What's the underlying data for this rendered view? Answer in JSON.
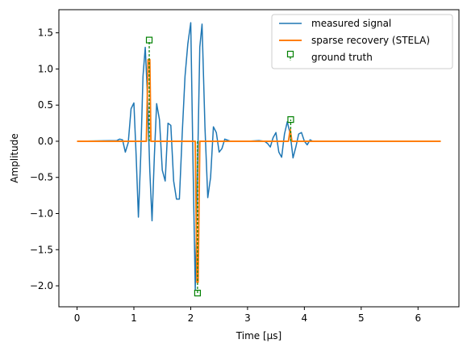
{
  "chart_data": {
    "type": "line",
    "xlabel": "Time [μs]",
    "ylabel": "Amplitude",
    "xlim": [
      -0.32,
      6.72
    ],
    "ylim": [
      -2.29,
      1.82
    ],
    "grid": false,
    "legend_placement": "upper right",
    "x_ticks": [
      0,
      1,
      2,
      3,
      4,
      5,
      6
    ],
    "x_tick_labels": [
      "0",
      "1",
      "2",
      "3",
      "4",
      "5",
      "6"
    ],
    "y_ticks": [
      -2.0,
      -1.5,
      -1.0,
      -0.5,
      0.0,
      0.5,
      1.0,
      1.5
    ],
    "y_tick_labels": [
      "−2.0",
      "−1.5",
      "−1.0",
      "−0.5",
      "0.0",
      "0.5",
      "1.0",
      "1.5"
    ],
    "series": [
      {
        "name": "measured signal",
        "color": "#1f77b4",
        "style": "line",
        "x": [
          0.0,
          0.7,
          0.75,
          0.8,
          0.85,
          0.9,
          0.95,
          1.0,
          1.04,
          1.08,
          1.12,
          1.16,
          1.2,
          1.24,
          1.28,
          1.32,
          1.36,
          1.4,
          1.45,
          1.5,
          1.55,
          1.6,
          1.65,
          1.7,
          1.75,
          1.8,
          1.85,
          1.9,
          1.95,
          2.0,
          2.04,
          2.08,
          2.12,
          2.16,
          2.2,
          2.25,
          2.3,
          2.35,
          2.4,
          2.45,
          2.5,
          2.55,
          2.6,
          2.7,
          3.0,
          3.2,
          3.3,
          3.35,
          3.4,
          3.45,
          3.5,
          3.55,
          3.6,
          3.65,
          3.7,
          3.75,
          3.8,
          3.85,
          3.9,
          3.95,
          4.0,
          4.05,
          4.1,
          4.15,
          4.2,
          6.4
        ],
        "y": [
          0.0,
          0.01,
          0.03,
          0.02,
          -0.15,
          -0.02,
          0.45,
          0.53,
          -0.2,
          -1.05,
          -0.2,
          0.9,
          1.3,
          0.6,
          -0.4,
          -1.1,
          -0.2,
          0.52,
          0.3,
          -0.4,
          -0.55,
          0.25,
          0.22,
          -0.55,
          -0.8,
          -0.8,
          0.1,
          0.9,
          1.35,
          1.64,
          -0.3,
          -2.05,
          -0.4,
          1.3,
          1.62,
          0.2,
          -0.78,
          -0.5,
          0.2,
          0.12,
          -0.15,
          -0.1,
          0.03,
          0.0,
          0.0,
          0.01,
          0.0,
          -0.03,
          -0.08,
          0.05,
          0.12,
          -0.15,
          -0.22,
          0.1,
          0.27,
          0.1,
          -0.23,
          -0.08,
          0.1,
          0.12,
          0.0,
          -0.05,
          0.02,
          0.0,
          0.0,
          0.0
        ]
      },
      {
        "name": "sparse recovery (STELA)",
        "color": "#ff7f0e",
        "style": "line",
        "x": [
          0.0,
          1.22,
          1.25,
          1.28,
          1.3,
          2.08,
          2.11,
          2.13,
          2.16,
          3.72,
          3.75,
          3.78,
          6.4
        ],
        "y": [
          0.0,
          0.0,
          1.13,
          1.13,
          0.0,
          0.0,
          -1.95,
          -1.95,
          0.0,
          0.0,
          0.16,
          0.0,
          0.0
        ]
      },
      {
        "name": "ground truth",
        "color": "#008000",
        "style": "stem",
        "x": [
          1.27,
          2.12,
          3.76
        ],
        "y": [
          1.4,
          -2.1,
          0.3
        ]
      }
    ]
  },
  "legend": {
    "items": [
      {
        "label": "measured signal",
        "color": "#1f77b4",
        "kind": "line"
      },
      {
        "label": "sparse recovery (STELA)",
        "color": "#ff7f0e",
        "kind": "line"
      },
      {
        "label": "ground truth",
        "color": "#008000",
        "kind": "stem"
      }
    ]
  }
}
